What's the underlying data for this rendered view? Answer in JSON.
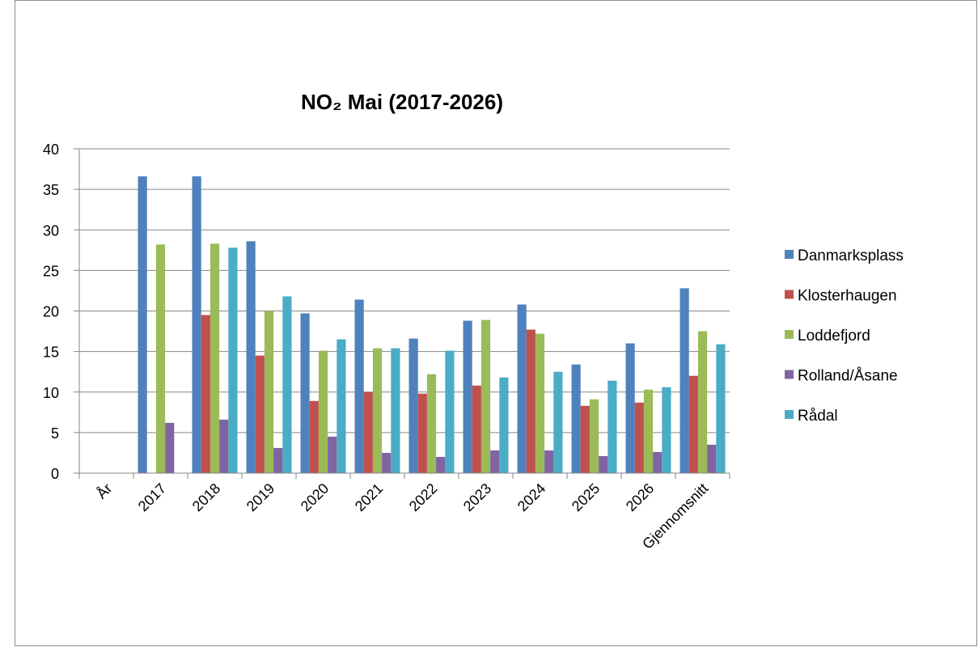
{
  "chart_data": {
    "type": "bar",
    "title": "NO₂ Mai (2017-2026)",
    "xlabel": "",
    "ylabel": "",
    "ylim": [
      0,
      40
    ],
    "yticks": [
      0,
      5,
      10,
      15,
      20,
      25,
      30,
      35,
      40
    ],
    "grid": true,
    "legend_position": "right",
    "categories": [
      "År",
      "2017",
      "2018",
      "2019",
      "2020",
      "2021",
      "2022",
      "2023",
      "2024",
      "2025",
      "2026",
      "Gjennomsnitt"
    ],
    "series": [
      {
        "name": "Danmarksplass",
        "color": "#4f81bd",
        "values": [
          null,
          36.6,
          36.6,
          28.6,
          19.7,
          21.4,
          16.6,
          18.8,
          20.8,
          13.4,
          16.0,
          22.8
        ]
      },
      {
        "name": "Klosterhaugen",
        "color": "#c0504d",
        "values": [
          null,
          null,
          19.5,
          14.5,
          8.9,
          10.0,
          9.8,
          10.8,
          17.7,
          8.3,
          8.7,
          12.0
        ]
      },
      {
        "name": "Loddefjord",
        "color": "#9bbb59",
        "values": [
          null,
          28.2,
          28.3,
          20.0,
          15.1,
          15.4,
          12.2,
          18.9,
          17.2,
          9.1,
          10.3,
          17.5
        ]
      },
      {
        "name": "Rolland/Åsane",
        "color": "#8064a2",
        "values": [
          null,
          6.2,
          6.6,
          3.1,
          4.5,
          2.5,
          2.0,
          2.8,
          2.8,
          2.1,
          2.6,
          3.5
        ]
      },
      {
        "name": "Rådal",
        "color": "#4bacc6",
        "values": [
          null,
          null,
          27.8,
          21.8,
          16.5,
          15.4,
          15.1,
          11.8,
          12.5,
          11.4,
          10.6,
          15.9
        ]
      }
    ]
  }
}
